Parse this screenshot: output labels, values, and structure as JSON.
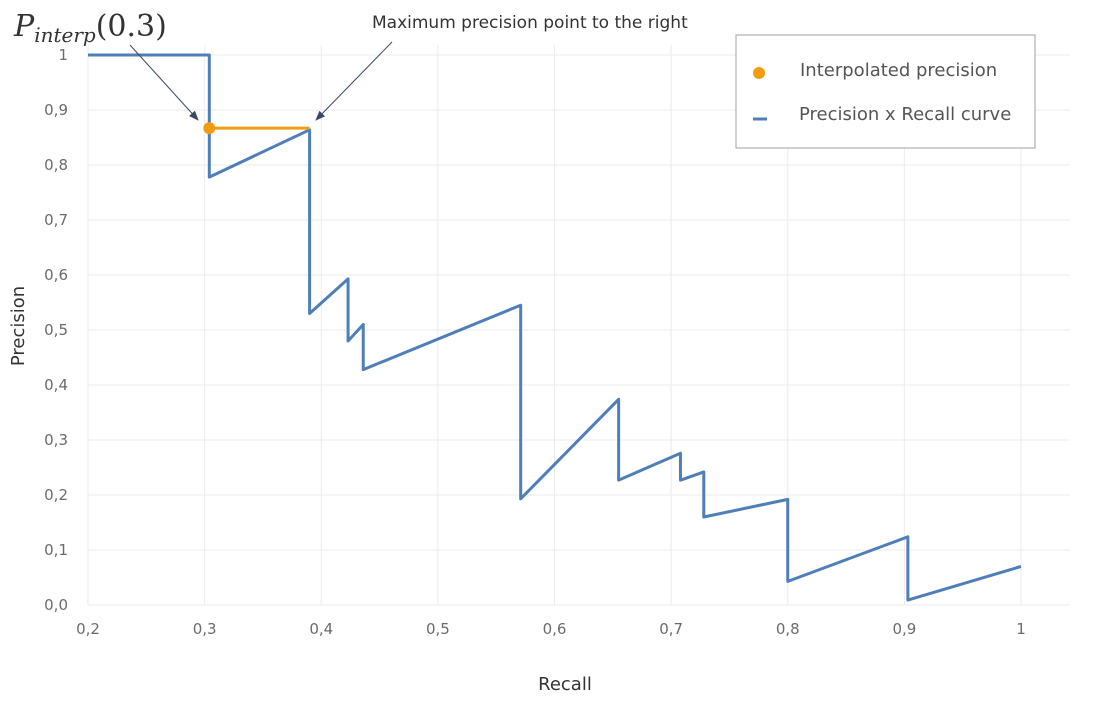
{
  "chart_data": {
    "type": "line",
    "xlabel": "Recall",
    "ylabel": "Precision",
    "xlim": [
      0.2,
      1.0
    ],
    "ylim": [
      0.0,
      1.0
    ],
    "x_ticks": [
      0.2,
      0.3,
      0.4,
      0.5,
      0.6,
      0.7,
      0.8,
      0.9,
      1.0
    ],
    "x_tick_labels": [
      "0,2",
      "0,3",
      "0,4",
      "0,5",
      "0,6",
      "0,7",
      "0,8",
      "0,9",
      "1"
    ],
    "y_ticks": [
      0.0,
      0.1,
      0.2,
      0.3,
      0.4,
      0.5,
      0.6,
      0.7,
      0.8,
      0.9,
      1.0
    ],
    "y_tick_labels": [
      "0,0",
      "0,1",
      "0,2",
      "0,3",
      "0,4",
      "0,5",
      "0,6",
      "0,7",
      "0,8",
      "0,9",
      "1"
    ],
    "grid": true,
    "legend_position": "top-right",
    "series": [
      {
        "name": "Precision x Recall curve",
        "color": "#4f7fb8",
        "points": [
          [
            0.2,
            1.0
          ],
          [
            0.304,
            1.0
          ],
          [
            0.304,
            0.778
          ],
          [
            0.39,
            0.864
          ],
          [
            0.39,
            0.53
          ],
          [
            0.423,
            0.593
          ],
          [
            0.423,
            0.48
          ],
          [
            0.436,
            0.51
          ],
          [
            0.436,
            0.428
          ],
          [
            0.571,
            0.545
          ],
          [
            0.571,
            0.193
          ],
          [
            0.655,
            0.374
          ],
          [
            0.655,
            0.227
          ],
          [
            0.708,
            0.276
          ],
          [
            0.708,
            0.227
          ],
          [
            0.728,
            0.242
          ],
          [
            0.728,
            0.16
          ],
          [
            0.8,
            0.192
          ],
          [
            0.8,
            0.043
          ],
          [
            0.903,
            0.124
          ],
          [
            0.903,
            0.009
          ],
          [
            1.0,
            0.07
          ]
        ]
      },
      {
        "name": "Interpolated precision",
        "color": "#f39c12",
        "point": [
          0.304,
          0.867
        ],
        "line_to": [
          0.39,
          0.867
        ]
      }
    ],
    "annotations": {
      "formula_base": "P",
      "formula_sub": "interp",
      "formula_arg": "(0.3)",
      "right_note": "Maximum precision point to the right"
    }
  }
}
